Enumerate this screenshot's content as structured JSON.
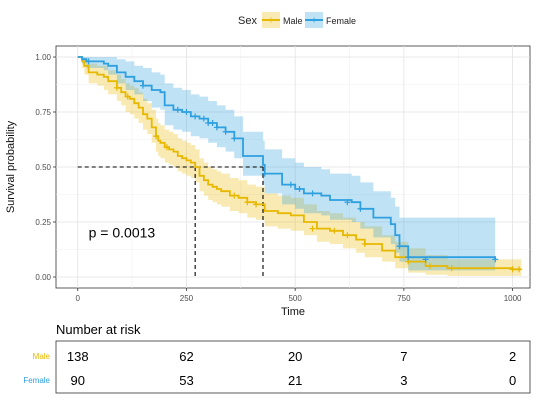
{
  "chart_data": [
    {
      "type": "line",
      "subtype": "kaplan-meier",
      "title": "",
      "xlabel": "Time",
      "ylabel": "Survival probability",
      "xlim": [
        -50,
        1040
      ],
      "ylim": [
        -0.05,
        1.05
      ],
      "x_ticks": [
        0,
        250,
        500,
        750,
        1000
      ],
      "y_ticks": [
        0.0,
        0.25,
        0.5,
        0.75,
        1.0
      ],
      "x_tick_labels": [
        "0",
        "250",
        "500",
        "750",
        "1000"
      ],
      "y_tick_labels": [
        "0.00",
        "0.25",
        "0.50",
        "0.75",
        "1.00"
      ],
      "grid": true,
      "annotation": "p = 0.0013",
      "annotation_position": {
        "x": 25,
        "y": 0.18
      },
      "median_survival": [
        {
          "series": "Male",
          "time": 270,
          "probability": 0.5
        },
        {
          "series": "Female",
          "time": 426,
          "probability": 0.5
        }
      ],
      "legend": {
        "title": "Sex",
        "position": "top",
        "entries": [
          "Male",
          "Female"
        ]
      },
      "series": [
        {
          "name": "Male",
          "color": "#E7B800",
          "x": [
            0,
            10,
            15,
            25,
            45,
            60,
            70,
            90,
            100,
            110,
            120,
            130,
            140,
            150,
            160,
            170,
            180,
            185,
            190,
            200,
            210,
            220,
            230,
            240,
            250,
            260,
            270,
            280,
            290,
            300,
            310,
            320,
            330,
            350,
            370,
            390,
            410,
            430,
            460,
            490,
            520,
            550,
            580,
            610,
            640,
            660,
            700,
            730,
            760,
            800,
            850,
            1000,
            1020
          ],
          "y": [
            1.0,
            0.98,
            0.96,
            0.93,
            0.92,
            0.91,
            0.89,
            0.86,
            0.84,
            0.82,
            0.81,
            0.79,
            0.77,
            0.74,
            0.72,
            0.68,
            0.64,
            0.62,
            0.61,
            0.59,
            0.58,
            0.57,
            0.55,
            0.54,
            0.53,
            0.52,
            0.5,
            0.46,
            0.44,
            0.42,
            0.41,
            0.4,
            0.39,
            0.37,
            0.36,
            0.34,
            0.33,
            0.3,
            0.29,
            0.28,
            0.25,
            0.22,
            0.21,
            0.19,
            0.17,
            0.15,
            0.12,
            0.09,
            0.07,
            0.05,
            0.04,
            0.035,
            0.035
          ],
          "ci_lower": [
            1.0,
            0.95,
            0.92,
            0.88,
            0.87,
            0.85,
            0.83,
            0.8,
            0.78,
            0.75,
            0.74,
            0.72,
            0.7,
            0.67,
            0.65,
            0.61,
            0.57,
            0.55,
            0.54,
            0.52,
            0.51,
            0.5,
            0.48,
            0.47,
            0.46,
            0.45,
            0.43,
            0.39,
            0.37,
            0.35,
            0.34,
            0.33,
            0.32,
            0.3,
            0.29,
            0.27,
            0.26,
            0.23,
            0.22,
            0.21,
            0.19,
            0.16,
            0.15,
            0.13,
            0.11,
            0.09,
            0.07,
            0.04,
            0.02,
            0.01,
            0.005,
            0.005,
            0.005
          ],
          "ci_upper": [
            1.0,
            1.0,
            0.99,
            0.97,
            0.96,
            0.96,
            0.94,
            0.92,
            0.9,
            0.88,
            0.87,
            0.86,
            0.84,
            0.81,
            0.79,
            0.76,
            0.72,
            0.7,
            0.69,
            0.67,
            0.66,
            0.65,
            0.63,
            0.62,
            0.61,
            0.6,
            0.58,
            0.54,
            0.52,
            0.5,
            0.49,
            0.48,
            0.47,
            0.45,
            0.44,
            0.42,
            0.41,
            0.38,
            0.37,
            0.36,
            0.33,
            0.3,
            0.29,
            0.27,
            0.25,
            0.23,
            0.19,
            0.16,
            0.13,
            0.1,
            0.08,
            0.08,
            0.08
          ],
          "censor_x": [
            90,
            115,
            180,
            205,
            360,
            390,
            410,
            540,
            590,
            620,
            660,
            760,
            810,
            860,
            1000,
            1015
          ],
          "censor_y": [
            0.86,
            0.82,
            0.64,
            0.59,
            0.37,
            0.34,
            0.33,
            0.22,
            0.21,
            0.19,
            0.15,
            0.07,
            0.05,
            0.04,
            0.035,
            0.035
          ]
        },
        {
          "name": "Female",
          "color": "#2E9FDF",
          "x": [
            0,
            10,
            20,
            60,
            70,
            90,
            110,
            130,
            150,
            170,
            190,
            200,
            220,
            240,
            260,
            280,
            300,
            320,
            340,
            360,
            380,
            426,
            430,
            470,
            500,
            520,
            560,
            580,
            630,
            650,
            680,
            720,
            730,
            740,
            760,
            960
          ],
          "y": [
            1.0,
            0.99,
            0.98,
            0.97,
            0.96,
            0.93,
            0.91,
            0.89,
            0.87,
            0.85,
            0.84,
            0.78,
            0.76,
            0.75,
            0.73,
            0.72,
            0.7,
            0.68,
            0.66,
            0.63,
            0.55,
            0.51,
            0.47,
            0.42,
            0.4,
            0.38,
            0.37,
            0.35,
            0.34,
            0.31,
            0.27,
            0.24,
            0.19,
            0.14,
            0.09,
            0.08
          ],
          "ci_lower": [
            1.0,
            0.97,
            0.95,
            0.94,
            0.92,
            0.88,
            0.85,
            0.83,
            0.8,
            0.77,
            0.76,
            0.69,
            0.67,
            0.66,
            0.64,
            0.63,
            0.61,
            0.59,
            0.57,
            0.54,
            0.46,
            0.42,
            0.38,
            0.33,
            0.31,
            0.29,
            0.28,
            0.26,
            0.25,
            0.22,
            0.18,
            0.15,
            0.11,
            0.07,
            0.03,
            0.03
          ],
          "ci_upper": [
            1.0,
            1.0,
            1.0,
            1.0,
            1.0,
            0.99,
            0.98,
            0.96,
            0.95,
            0.93,
            0.92,
            0.88,
            0.86,
            0.85,
            0.83,
            0.82,
            0.8,
            0.78,
            0.76,
            0.73,
            0.66,
            0.62,
            0.58,
            0.54,
            0.52,
            0.5,
            0.49,
            0.47,
            0.46,
            0.43,
            0.39,
            0.36,
            0.32,
            0.27,
            0.27,
            0.27
          ],
          "censor_x": [
            25,
            150,
            230,
            250,
            270,
            290,
            300,
            310,
            320,
            340,
            360,
            430,
            490,
            510,
            540,
            620,
            650,
            740,
            760,
            800,
            960
          ],
          "censor_y": [
            0.98,
            0.87,
            0.76,
            0.75,
            0.73,
            0.72,
            0.7,
            0.7,
            0.68,
            0.66,
            0.63,
            0.47,
            0.42,
            0.4,
            0.38,
            0.34,
            0.31,
            0.14,
            0.09,
            0.08,
            0.08
          ]
        }
      ]
    },
    {
      "type": "table",
      "title": "Number at risk",
      "time_points": [
        0,
        250,
        500,
        750,
        1000
      ],
      "rows": [
        {
          "label": "Male",
          "color": "#E7B800",
          "values": [
            "138",
            "62",
            "20",
            "7",
            "2"
          ]
        },
        {
          "label": "Female",
          "color": "#2E9FDF",
          "values": [
            "90",
            "53",
            "21",
            "3",
            "0"
          ]
        }
      ]
    }
  ]
}
